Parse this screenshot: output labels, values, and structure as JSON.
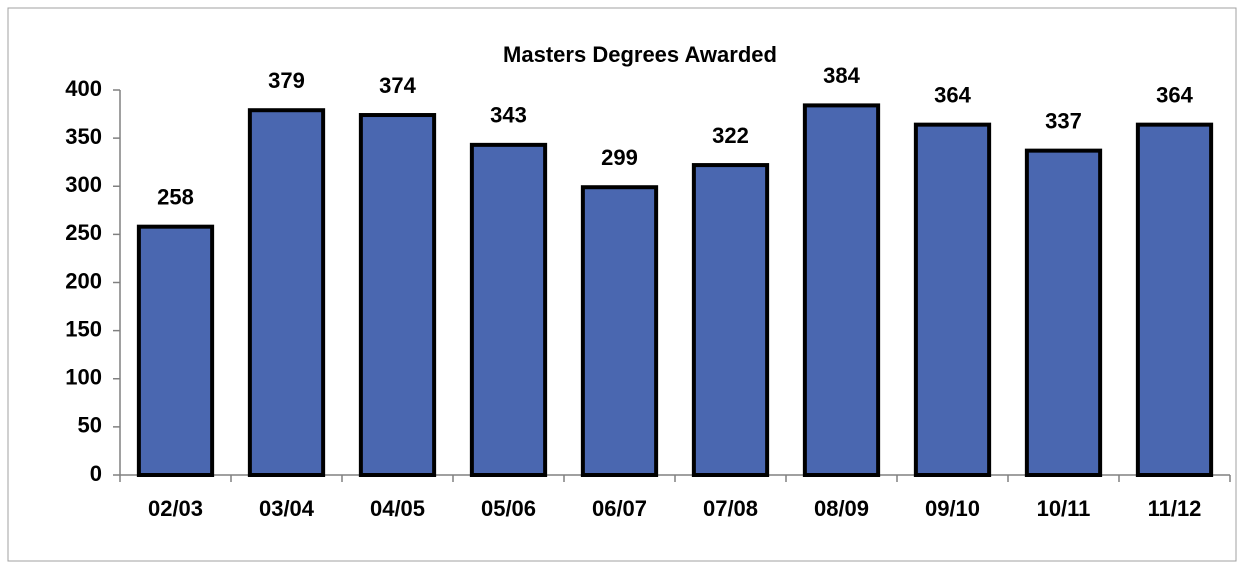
{
  "chart_data": {
    "type": "bar",
    "title": "Masters Degrees Awarded",
    "categories": [
      "02/03",
      "03/04",
      "04/05",
      "05/06",
      "06/07",
      "07/08",
      "08/09",
      "09/10",
      "10/11",
      "11/12"
    ],
    "values": [
      258,
      379,
      374,
      343,
      299,
      322,
      384,
      364,
      337,
      364
    ],
    "color": "#4a67b0",
    "ylim": [
      0,
      400
    ],
    "yticks": [
      0,
      50,
      100,
      150,
      200,
      250,
      300,
      350,
      400
    ],
    "grid": false
  }
}
